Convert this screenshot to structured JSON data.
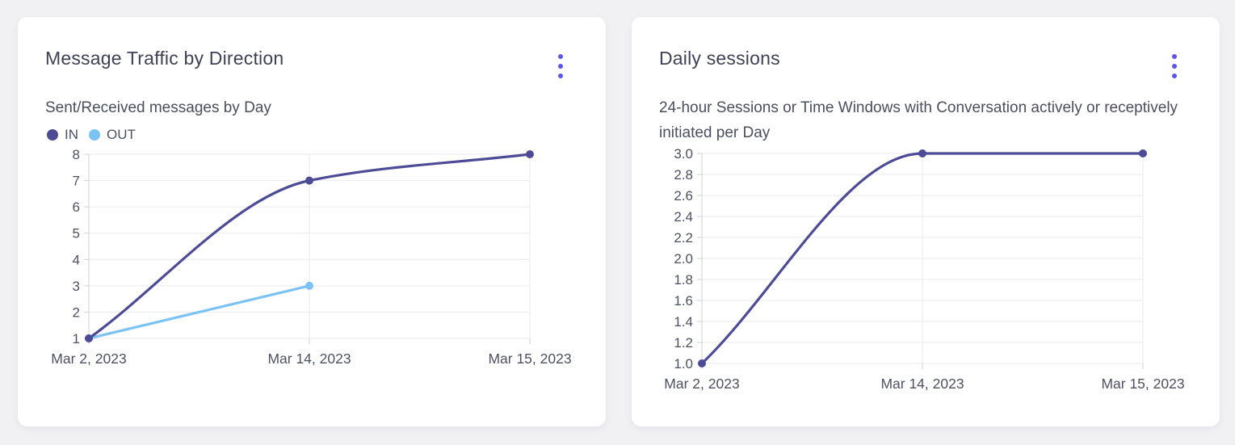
{
  "colors": {
    "accent": "#5a55f0",
    "series_in": "#4d4b96",
    "series_out": "#7cc2f2",
    "grid": "#e9eaee",
    "axis": "#cfd1d7",
    "tick_text": "#4d5160",
    "title_text": "#3e4254",
    "card_bg": "#ffffff",
    "page_bg": "#f1f1f4"
  },
  "cards": [
    {
      "menu_icon": "kebab-vertical-menu"
    },
    {
      "menu_icon": "kebab-vertical-menu"
    }
  ],
  "chart_data": [
    {
      "type": "line",
      "title": "Message Traffic by Direction",
      "subtitle": "Sent/Received messages by Day",
      "categories": [
        "Mar 2, 2023",
        "Mar 14, 2023",
        "Mar 15, 2023"
      ],
      "series": [
        {
          "name": "IN",
          "color": "#4d4b96",
          "values": [
            1,
            7,
            8
          ]
        },
        {
          "name": "OUT",
          "color": "#7cc2f2",
          "values": [
            1,
            3,
            null
          ]
        }
      ],
      "ylim": [
        1,
        8
      ],
      "ytick_labels": [
        "1",
        "2",
        "3",
        "4",
        "5",
        "6",
        "7",
        "8"
      ],
      "grid": true,
      "legend_position": "top-left",
      "curve": "monotone"
    },
    {
      "type": "line",
      "title": "Daily sessions",
      "subtitle": "24-hour Sessions or Time Windows with Conversation actively or receptively initiated per Day",
      "categories": [
        "Mar 2, 2023",
        "Mar 14, 2023",
        "Mar 15, 2023"
      ],
      "series": [
        {
          "color": "#4d4b96",
          "values": [
            1,
            3,
            3
          ]
        }
      ],
      "ylim": [
        1,
        3
      ],
      "ytick_labels": [
        "1.0",
        "1.2",
        "1.4",
        "1.6",
        "1.8",
        "2.0",
        "2.2",
        "2.4",
        "2.6",
        "2.8",
        "3.0"
      ],
      "grid": true,
      "legend_position": "none",
      "curve": "monotone"
    }
  ]
}
